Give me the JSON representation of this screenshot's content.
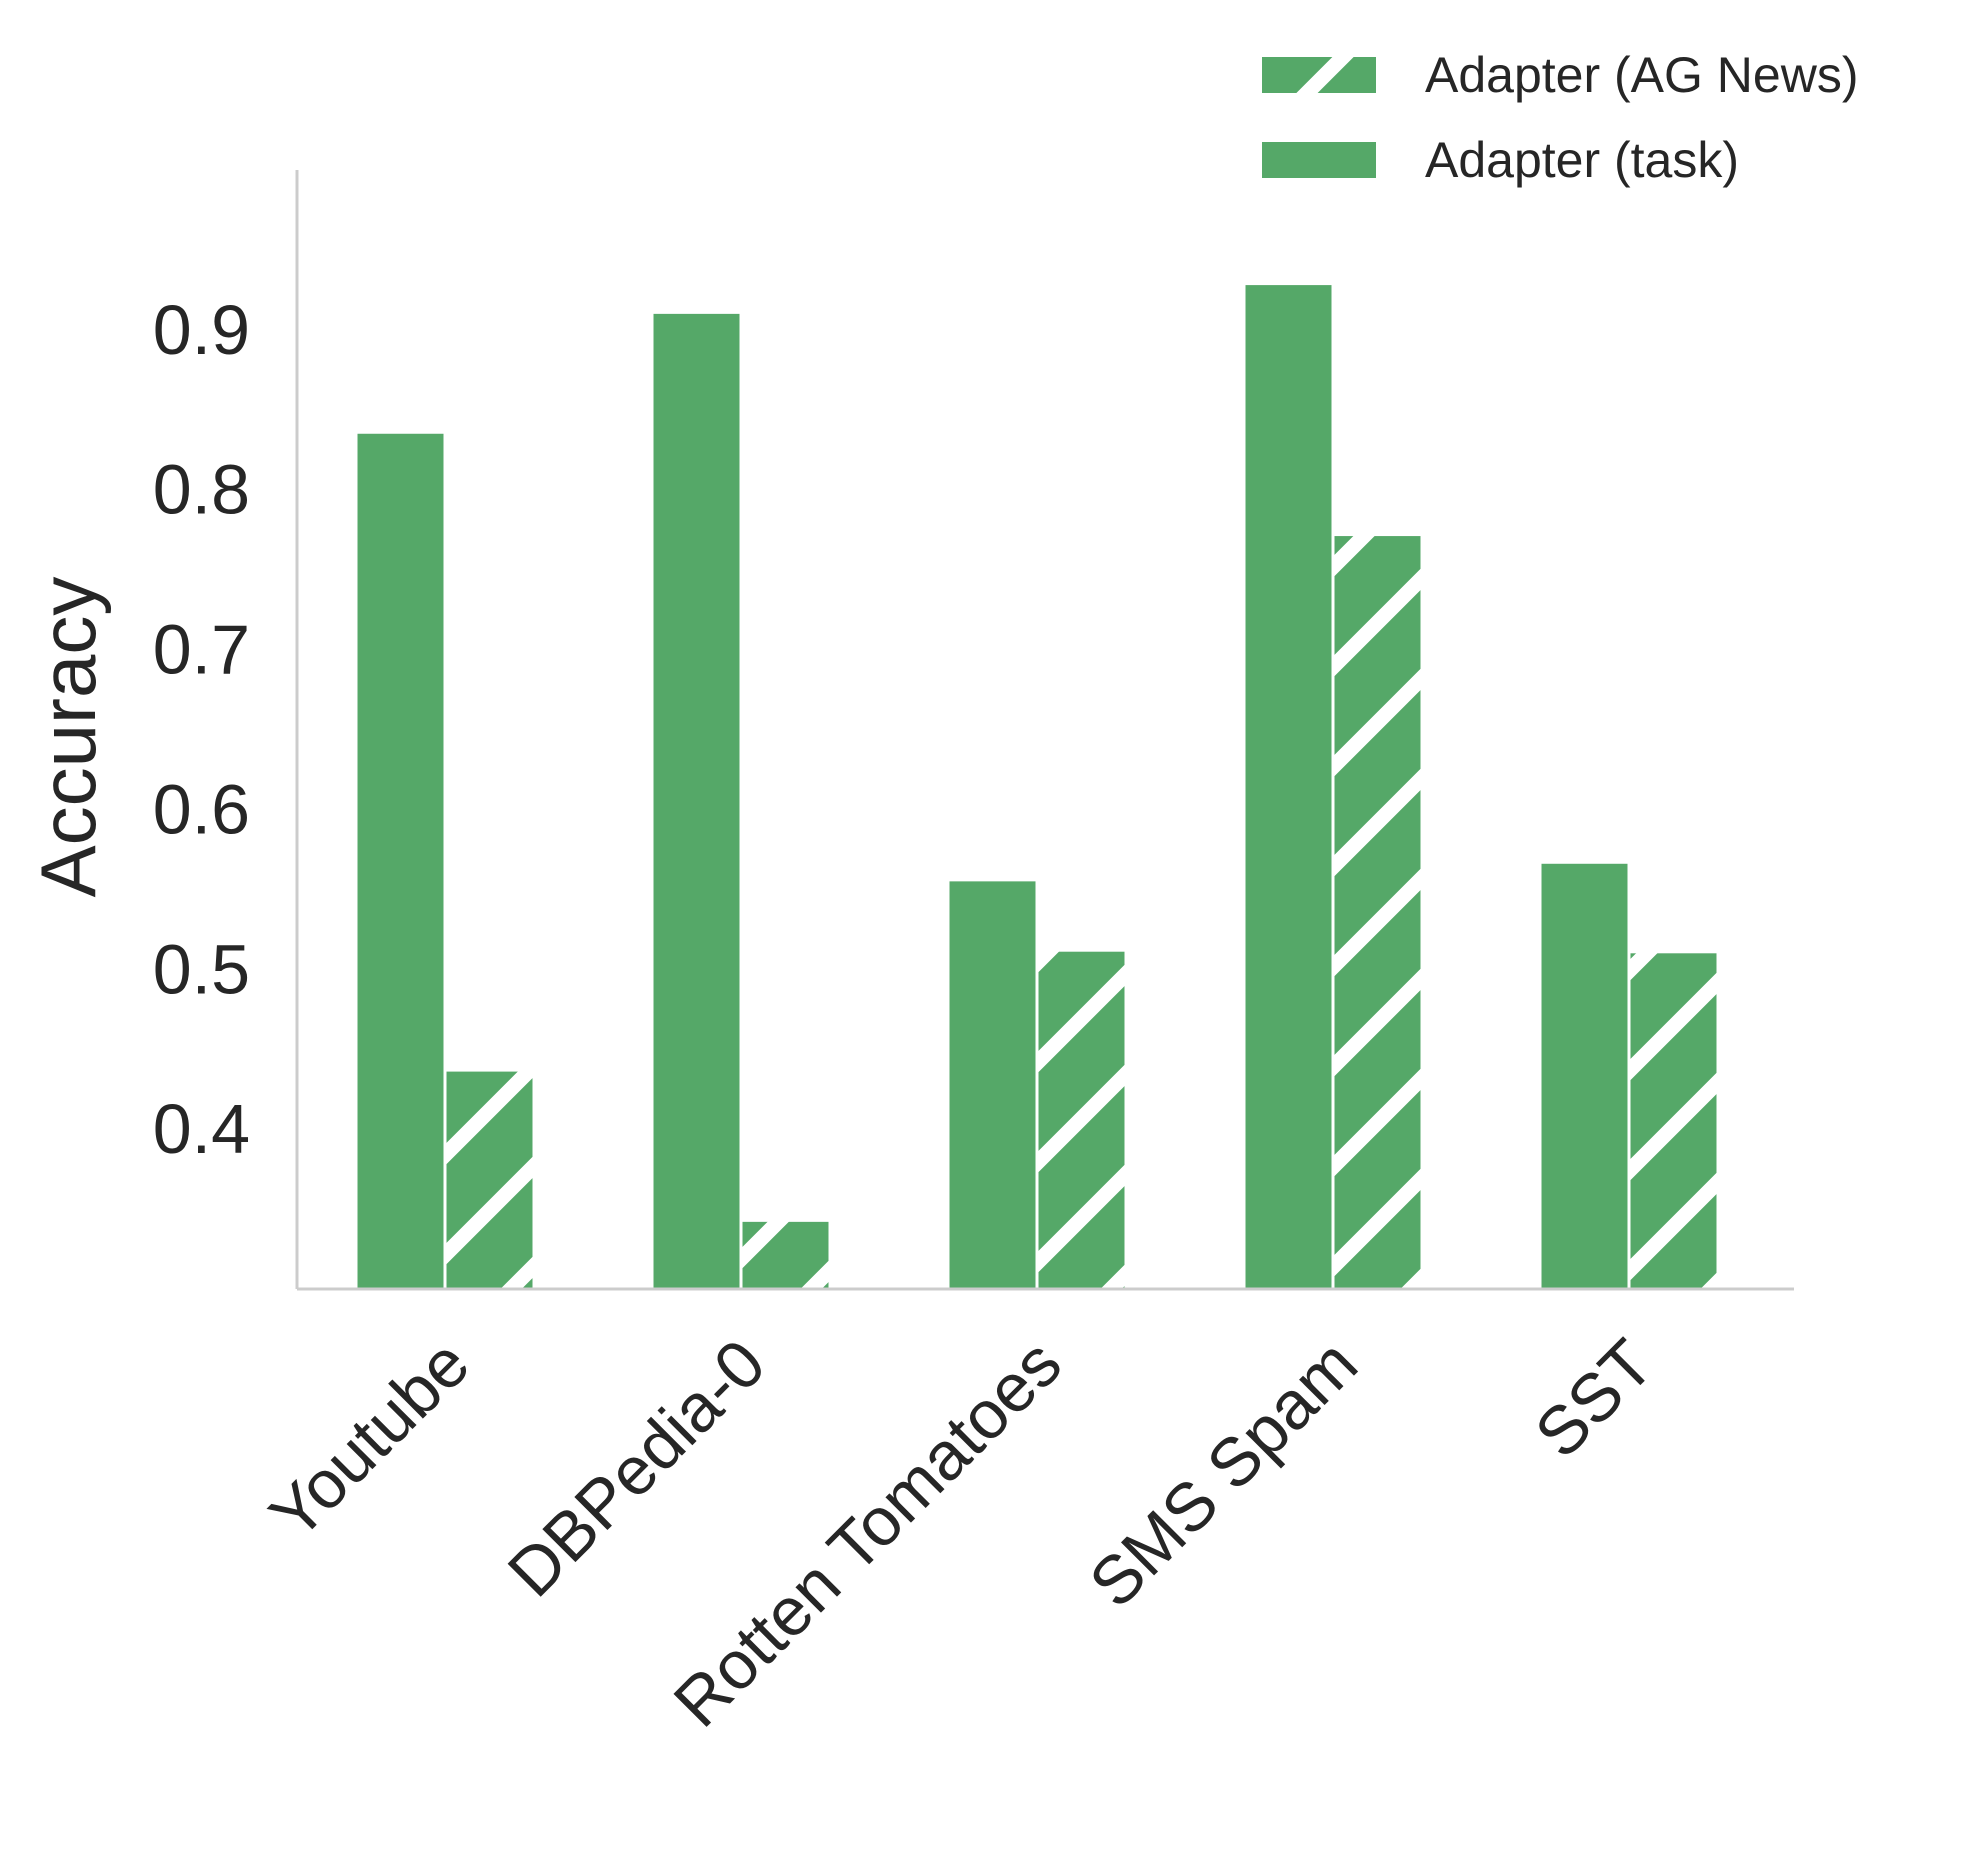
{
  "chart_data": {
    "type": "bar",
    "categories": [
      "Youtube",
      "DBPedia-0",
      "Rotten Tomatoes",
      "SMS Spam",
      "SST"
    ],
    "series": [
      {
        "name": "Adapter (task)",
        "values": [
          0.835,
          0.91,
          0.555,
          0.928,
          0.566
        ],
        "hatch": false
      },
      {
        "name": "Adapter (AG News)",
        "values": [
          0.436,
          0.342,
          0.511,
          0.771,
          0.51
        ],
        "hatch": true
      }
    ],
    "title": "",
    "xlabel": "",
    "ylabel": "Accuracy",
    "ylim": [
      0.3,
      1.0
    ],
    "yticks": [
      0.4,
      0.5,
      0.6,
      0.7,
      0.8,
      0.9
    ],
    "ytick_labels": [
      "0.4",
      "0.5",
      "0.6",
      "0.7",
      "0.8",
      "0.9"
    ],
    "legend_order": [
      "Adapter (AG News)",
      "Adapter (task)"
    ],
    "legend_position": "top-right",
    "grid": false,
    "colors": {
      "bar": "#55a868",
      "axis": "#cccccc",
      "text": "#262626"
    }
  }
}
